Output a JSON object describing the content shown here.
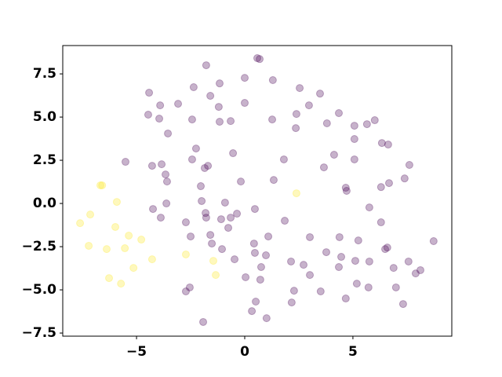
{
  "chart_data": {
    "type": "scatter",
    "xlim": [
      -8.41,
      9.57
    ],
    "ylim": [
      -7.68,
      9.14
    ],
    "xticks": [
      {
        "value": -5,
        "label": "−5"
      },
      0,
      5
    ],
    "yticks": [
      {
        "value": -7.5,
        "label": "−7.5"
      },
      {
        "value": -5,
        "label": "−5.0"
      },
      {
        "value": -2.5,
        "label": "−2.5"
      },
      {
        "value": 0,
        "label": "0.0"
      },
      {
        "value": 2.5,
        "label": "2.5"
      },
      {
        "value": 5,
        "label": "5.0"
      },
      {
        "value": 7.5,
        "label": "7.5"
      }
    ],
    "alpha": 0.3,
    "grid": false,
    "series": [
      {
        "color": "#440154",
        "x": [
          0.58,
          0.69,
          -1.78,
          -4.42,
          -2.36,
          -1.16,
          0,
          1.3,
          2.54,
          3.48,
          -3.91,
          -3.08,
          -1.59,
          -1.2,
          0,
          2.97,
          -4.46,
          -3.95,
          -2.43,
          -1.16,
          -0.65,
          1.27,
          2.39,
          4.35,
          3.8,
          5.07,
          5.65,
          6.01,
          2.36,
          -3.55,
          5.07,
          6.34,
          6.63,
          -2.25,
          -0.54,
          4.13,
          -5.51,
          -2.43,
          1.81,
          5.07,
          -4.28,
          -3.84,
          -1.7,
          -1.85,
          3.66,
          7.61,
          -3.66,
          -3.59,
          -0.18,
          1.34,
          7.39,
          6.67,
          6.3,
          4.67,
          4.71,
          -2.03,
          -1.99,
          -3.62,
          -0.91,
          -4.24,
          -1.81,
          0.47,
          -0.36,
          5.76,
          -3.88,
          -2.72,
          -1.78,
          -1.09,
          -0.65,
          1.85,
          6.3,
          -0.76,
          -2.5,
          -1.59,
          1.09,
          3.01,
          4.38,
          5.25,
          8.73,
          -1.52,
          0.43,
          -1.05,
          6.49,
          6.59,
          0.47,
          0.98,
          3.77,
          4.46,
          -0.47,
          2.14,
          2.72,
          5.11,
          5.76,
          7.57,
          0.76,
          4.35,
          6.88,
          8.12,
          7.9,
          3.01,
          0.04,
          0.72,
          5.18,
          -2.54,
          -2.72,
          2.28,
          3.51,
          5.72,
          6.99,
          4.67,
          0.51,
          2.17,
          7.32,
          0.33,
          1.01,
          -1.92
        ],
        "y": [
          8.41,
          8.36,
          8.0,
          6.41,
          6.73,
          6.95,
          7.27,
          7.14,
          6.68,
          6.36,
          5.68,
          5.77,
          6.23,
          5.59,
          5.82,
          5.68,
          5.14,
          4.91,
          4.86,
          4.73,
          4.77,
          4.86,
          5.18,
          5.23,
          4.64,
          4.5,
          4.59,
          4.82,
          4.36,
          4.05,
          3.73,
          3.5,
          3.41,
          3.18,
          2.91,
          2.82,
          2.41,
          2.55,
          2.55,
          2.55,
          2.18,
          2.27,
          2.18,
          2.05,
          2.09,
          2.23,
          1.68,
          1.27,
          1.27,
          1.36,
          1.45,
          1.18,
          0.95,
          0.91,
          0.73,
          1.0,
          0.14,
          0,
          0.05,
          -0.32,
          -0.55,
          -0.32,
          -0.59,
          -0.23,
          -0.82,
          -1.09,
          -0.82,
          -0.91,
          -0.82,
          -1.0,
          -1.09,
          -1.41,
          -1.91,
          -1.82,
          -1.91,
          -1.95,
          -1.95,
          -2.14,
          -2.18,
          -2.32,
          -2.32,
          -2.64,
          -2.64,
          -2.55,
          -2.86,
          -3.0,
          -2.82,
          -3.09,
          -3.23,
          -3.36,
          -3.55,
          -3.32,
          -3.36,
          -3.36,
          -3.68,
          -3.68,
          -3.73,
          -3.86,
          -4.05,
          -4.14,
          -4.27,
          -4.41,
          -4.64,
          -4.86,
          -5.09,
          -5.05,
          -5.09,
          -4.86,
          -4.86,
          -5.5,
          -5.68,
          -5.73,
          -5.82,
          -6.23,
          -6.64,
          -6.86
        ]
      },
      {
        "color": "#fde725",
        "x": [
          -6.67,
          -6.59,
          -5.91,
          -7.14,
          -7.61,
          -5.98,
          -5.36,
          -4.78,
          -7.21,
          -6.38,
          -5.54,
          -4.28,
          -5.14,
          -6.27,
          -5.72,
          -2.72,
          -1.45,
          -1.34,
          2.39
        ],
        "y": [
          1.05,
          1.05,
          0.09,
          -0.64,
          -1.14,
          -1.36,
          -1.86,
          -2.09,
          -2.45,
          -2.64,
          -2.59,
          -3.23,
          -3.73,
          -4.32,
          -4.64,
          -2.95,
          -3.32,
          -4.14,
          0.59
        ]
      }
    ]
  }
}
